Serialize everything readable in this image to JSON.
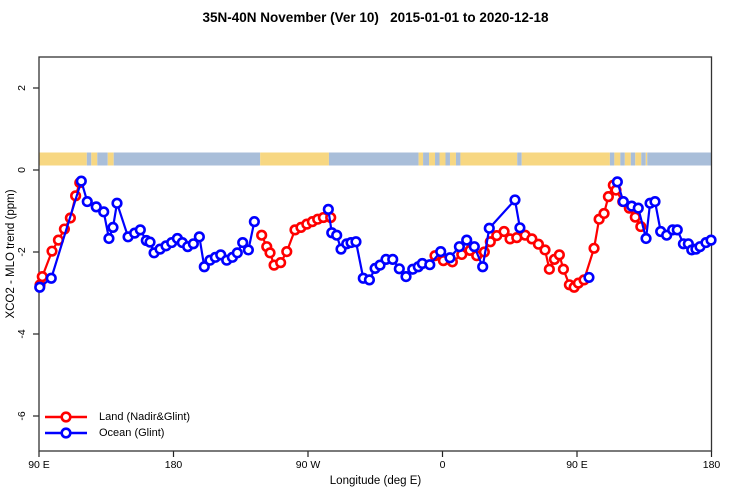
{
  "chart_data": {
    "type": "line",
    "title": "35N-40N November (Ver 10)   2015-01-01 to 2020-12-18",
    "xlabel": "Longitude (deg E)",
    "ylabel": "XCO2 - MLO trend (ppm)",
    "x_axis": {
      "min": 90,
      "max": 540,
      "ticks": [
        {
          "lon": 90,
          "label": "90 E"
        },
        {
          "lon": 180,
          "label": "180"
        },
        {
          "lon": 270,
          "label": "90 W"
        },
        {
          "lon": 360,
          "label": "0"
        },
        {
          "lon": 450,
          "label": "90 E"
        },
        {
          "lon": 540,
          "label": "180"
        }
      ]
    },
    "y_axis": {
      "min": -6.85,
      "max": 2.75,
      "ticks": [
        2,
        0,
        -2,
        -4,
        -6
      ]
    },
    "legend": [
      {
        "label": "Land (Nadir&Glint)",
        "color": "#ff0000"
      },
      {
        "label": "Ocean (Glint)",
        "color": "#0000ff"
      }
    ],
    "surface_band": {
      "description": "land/ocean surface-type strip near +0.3 ppm",
      "colors": {
        "land": "#f7d782",
        "ocean": "#a9bed9"
      },
      "segments": [
        {
          "from": 90,
          "to": 122,
          "type": "land"
        },
        {
          "from": 122,
          "to": 125,
          "type": "ocean"
        },
        {
          "from": 125,
          "to": 129,
          "type": "land"
        },
        {
          "from": 129,
          "to": 136,
          "type": "ocean"
        },
        {
          "from": 136,
          "to": 140,
          "type": "land"
        },
        {
          "from": 140,
          "to": 238,
          "type": "ocean"
        },
        {
          "from": 238,
          "to": 284,
          "type": "land"
        },
        {
          "from": 284,
          "to": 344,
          "type": "ocean"
        },
        {
          "from": 344,
          "to": 347,
          "type": "land"
        },
        {
          "from": 347,
          "to": 351,
          "type": "ocean"
        },
        {
          "from": 351,
          "to": 355,
          "type": "land"
        },
        {
          "from": 355,
          "to": 358,
          "type": "ocean"
        },
        {
          "from": 358,
          "to": 362,
          "type": "land"
        },
        {
          "from": 362,
          "to": 365,
          "type": "ocean"
        },
        {
          "from": 365,
          "to": 369,
          "type": "land"
        },
        {
          "from": 369,
          "to": 372,
          "type": "ocean"
        },
        {
          "from": 372,
          "to": 410,
          "type": "land"
        },
        {
          "from": 410,
          "to": 413,
          "type": "ocean"
        },
        {
          "from": 413,
          "to": 472,
          "type": "land"
        },
        {
          "from": 472,
          "to": 475,
          "type": "ocean"
        },
        {
          "from": 475,
          "to": 479,
          "type": "land"
        },
        {
          "from": 479,
          "to": 482,
          "type": "ocean"
        },
        {
          "from": 482,
          "to": 486,
          "type": "land"
        },
        {
          "from": 486,
          "to": 489,
          "type": "ocean"
        },
        {
          "from": 489,
          "to": 493,
          "type": "land"
        },
        {
          "from": 493,
          "to": 496,
          "type": "ocean"
        },
        {
          "from": 496,
          "to": 497,
          "type": "land"
        },
        {
          "from": 497,
          "to": 540,
          "type": "ocean"
        }
      ]
    },
    "series": [
      {
        "name": "Land (Nadir&Glint)",
        "color": "#ff0000",
        "segments": [
          [
            [
              90.7,
              -2.8
            ],
            [
              92.2,
              -2.6
            ],
            [
              98.7,
              -1.98
            ],
            [
              103,
              -1.71
            ],
            [
              107,
              -1.44
            ],
            [
              111,
              -1.17
            ],
            [
              114.5,
              -0.63
            ],
            [
              117.3,
              -0.31
            ]
          ],
          [
            [
              239,
              -1.59
            ],
            [
              242.4,
              -1.87
            ],
            [
              244.6,
              -2.02
            ],
            [
              247.3,
              -2.32
            ],
            [
              251.7,
              -2.26
            ],
            [
              255.8,
              -1.99
            ],
            [
              261.3,
              -1.46
            ],
            [
              265.3,
              -1.4
            ],
            [
              269.2,
              -1.32
            ],
            [
              272.9,
              -1.26
            ],
            [
              276.5,
              -1.2
            ],
            [
              280.3,
              -1.16
            ],
            [
              285.2,
              -1.16
            ]
          ],
          [
            [
              355,
              -2.09
            ],
            [
              360.6,
              -2.21
            ],
            [
              366.6,
              -2.24
            ],
            [
              372.9,
              -2.06
            ],
            [
              378.4,
              -1.96
            ],
            [
              382.9,
              -2.09
            ],
            [
              388,
              -2.0
            ],
            [
              392,
              -1.75
            ],
            [
              396.3,
              -1.6
            ],
            [
              401.2,
              -1.5
            ],
            [
              405.2,
              -1.68
            ],
            [
              409.7,
              -1.65
            ],
            [
              415.3,
              -1.59
            ],
            [
              419.8,
              -1.68
            ],
            [
              424.2,
              -1.81
            ],
            [
              428.6,
              -1.95
            ],
            [
              431.5,
              -2.42
            ],
            [
              434.9,
              -2.18
            ],
            [
              438.2,
              -2.07
            ],
            [
              440.9,
              -2.42
            ],
            [
              444.9,
              -2.8
            ],
            [
              448.1,
              -2.86
            ],
            [
              450.9,
              -2.76
            ],
            [
              454.7,
              -2.68
            ],
            [
              461.4,
              -1.91
            ],
            [
              464.8,
              -1.2
            ],
            [
              468.1,
              -1.06
            ],
            [
              471,
              -0.65
            ],
            [
              474.3,
              -0.37
            ],
            [
              476.1,
              -0.49
            ],
            [
              480.6,
              -0.77
            ],
            [
              485,
              -0.93
            ],
            [
              489,
              -1.15
            ],
            [
              492.7,
              -1.38
            ]
          ]
        ]
      },
      {
        "name": "Ocean (Glint)",
        "color": "#0000ff",
        "segments": [
          [
            [
              90.5,
              -2.86
            ],
            [
              98.2,
              -2.64
            ],
            [
              118.3,
              -0.27
            ],
            [
              122.3,
              -0.77
            ],
            [
              128.3,
              -0.9
            ],
            [
              133.3,
              -1.02
            ],
            [
              136.8,
              -1.67
            ],
            [
              139.5,
              -1.4
            ],
            [
              142.2,
              -0.81
            ],
            [
              149.6,
              -1.63
            ],
            [
              154,
              -1.54
            ],
            [
              157.8,
              -1.46
            ],
            [
              161.8,
              -1.72
            ],
            [
              164.3,
              -1.76
            ],
            [
              167,
              -2.02
            ],
            [
              171,
              -1.93
            ],
            [
              175,
              -1.85
            ],
            [
              178.8,
              -1.77
            ],
            [
              182.6,
              -1.67
            ],
            [
              185.9,
              -1.77
            ],
            [
              189.5,
              -1.87
            ],
            [
              193.3,
              -1.8
            ],
            [
              197.3,
              -1.63
            ],
            [
              200.6,
              -2.36
            ],
            [
              204.4,
              -2.2
            ],
            [
              208,
              -2.13
            ],
            [
              211.6,
              -2.07
            ],
            [
              215.6,
              -2.2
            ],
            [
              219.4,
              -2.13
            ],
            [
              222.7,
              -2.02
            ],
            [
              226.3,
              -1.77
            ],
            [
              230.1,
              -1.95
            ],
            [
              234.1,
              -1.26
            ]
          ],
          [
            [
              283.6,
              -0.96
            ],
            [
              285.9,
              -1.53
            ],
            [
              289.2,
              -1.59
            ],
            [
              292.1,
              -1.93
            ],
            [
              295.9,
              -1.8
            ],
            [
              298.8,
              -1.77
            ],
            [
              302.1,
              -1.75
            ],
            [
              307,
              -2.64
            ],
            [
              311.1,
              -2.68
            ],
            [
              314.9,
              -2.4
            ],
            [
              318.2,
              -2.32
            ],
            [
              322.2,
              -2.18
            ],
            [
              326.7,
              -2.18
            ],
            [
              331.1,
              -2.41
            ],
            [
              335.6,
              -2.6
            ],
            [
              340.1,
              -2.42
            ],
            [
              343.8,
              -2.36
            ],
            [
              346.5,
              -2.28
            ],
            [
              351.5,
              -2.31
            ],
            [
              358.8,
              -1.99
            ],
            [
              365,
              -2.14
            ],
            [
              371.3,
              -1.87
            ],
            [
              376.2,
              -1.71
            ],
            [
              381.3,
              -1.87
            ],
            [
              386.9,
              -2.36
            ],
            [
              391.3,
              -1.42
            ],
            [
              408.5,
              -0.73
            ],
            [
              411.8,
              -1.41
            ]
          ],
          [
            [
              458,
              -2.62
            ]
          ],
          [
            [
              477,
              -0.29
            ],
            [
              481,
              -0.77
            ],
            [
              486.6,
              -0.88
            ],
            [
              491,
              -0.93
            ],
            [
              496.2,
              -1.67
            ],
            [
              498.9,
              -0.81
            ],
            [
              502.2,
              -0.77
            ],
            [
              506,
              -1.5
            ],
            [
              510,
              -1.59
            ],
            [
              514,
              -1.46
            ],
            [
              517.1,
              -1.46
            ],
            [
              521.2,
              -1.8
            ],
            [
              524.5,
              -1.8
            ],
            [
              526.8,
              -1.95
            ],
            [
              529.6,
              -1.93
            ],
            [
              532.3,
              -1.87
            ],
            [
              536.3,
              -1.77
            ],
            [
              539.7,
              -1.71
            ]
          ]
        ]
      }
    ]
  }
}
